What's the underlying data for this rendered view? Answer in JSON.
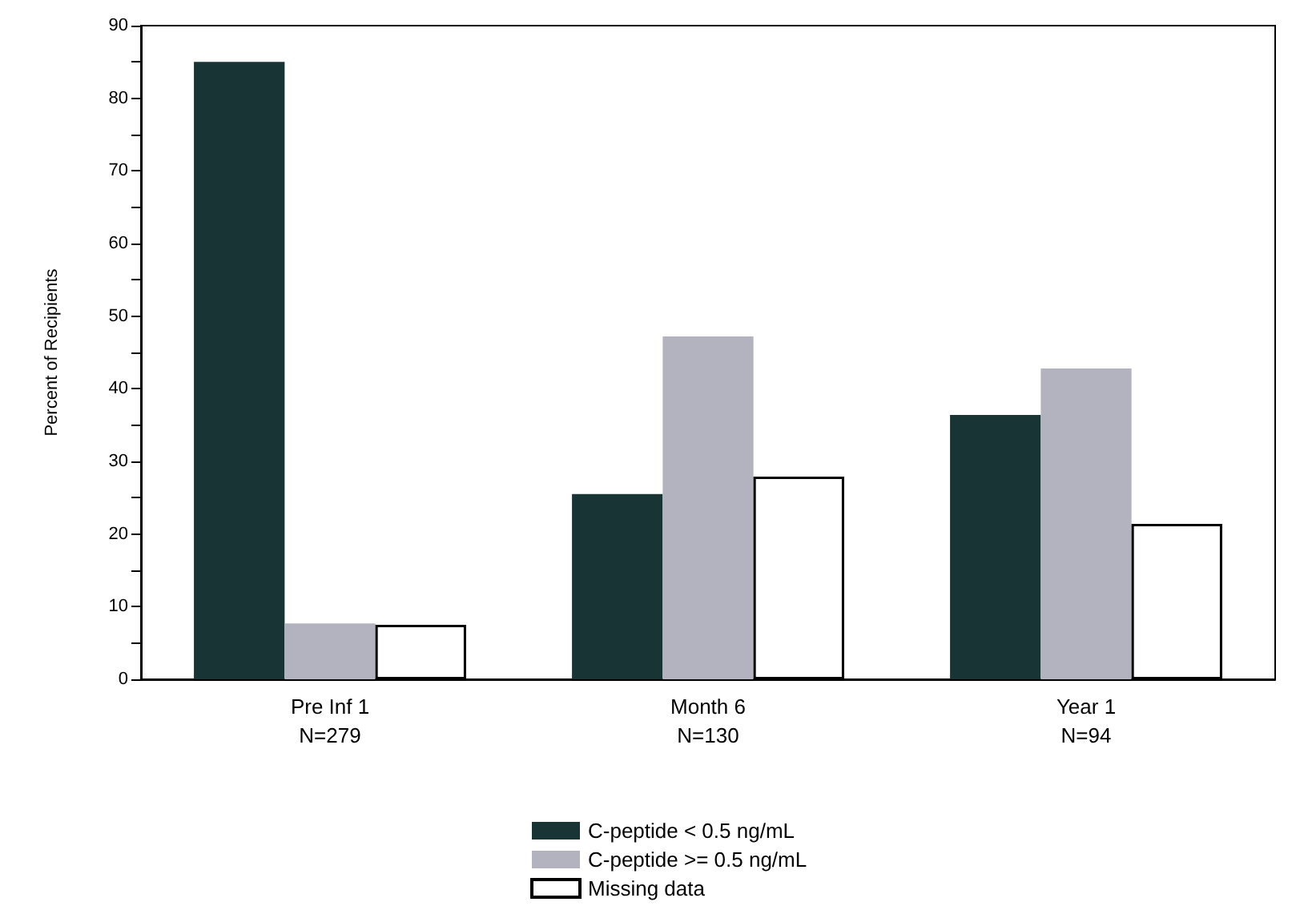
{
  "chart_data": {
    "type": "bar",
    "ylabel": "Percent of Recipients",
    "categories": [
      "Pre Inf 1\nN=279",
      "Month 6\nN=130",
      "Year 1\nN=94"
    ],
    "series": [
      {
        "name": "C-peptide < 0.5 ng/mL",
        "color": "#193434",
        "values": [
          85.0,
          25.5,
          36.4
        ]
      },
      {
        "name": "C-peptide >= 0.5 ng/mL",
        "color": "#b3b3bf",
        "values": [
          7.7,
          47.2,
          42.8
        ]
      },
      {
        "name": "Missing data",
        "color": "#ffffff",
        "values": [
          7.5,
          27.9,
          21.4
        ]
      }
    ],
    "ylim": [
      0,
      90
    ],
    "yticks": [
      0,
      {
        "value": 5,
        "label": null
      },
      10,
      {
        "value": 15,
        "label": null
      },
      20,
      {
        "value": 25,
        "label": null
      },
      30,
      {
        "value": 35,
        "label": null
      },
      40,
      {
        "value": 45,
        "label": null
      },
      50,
      {
        "value": 55,
        "label": null
      },
      60,
      {
        "value": 65,
        "label": null
      },
      70,
      {
        "value": 75,
        "label": null
      },
      80,
      {
        "value": 85,
        "label": null
      },
      90
    ],
    "grid": false,
    "legend": "bottom"
  }
}
